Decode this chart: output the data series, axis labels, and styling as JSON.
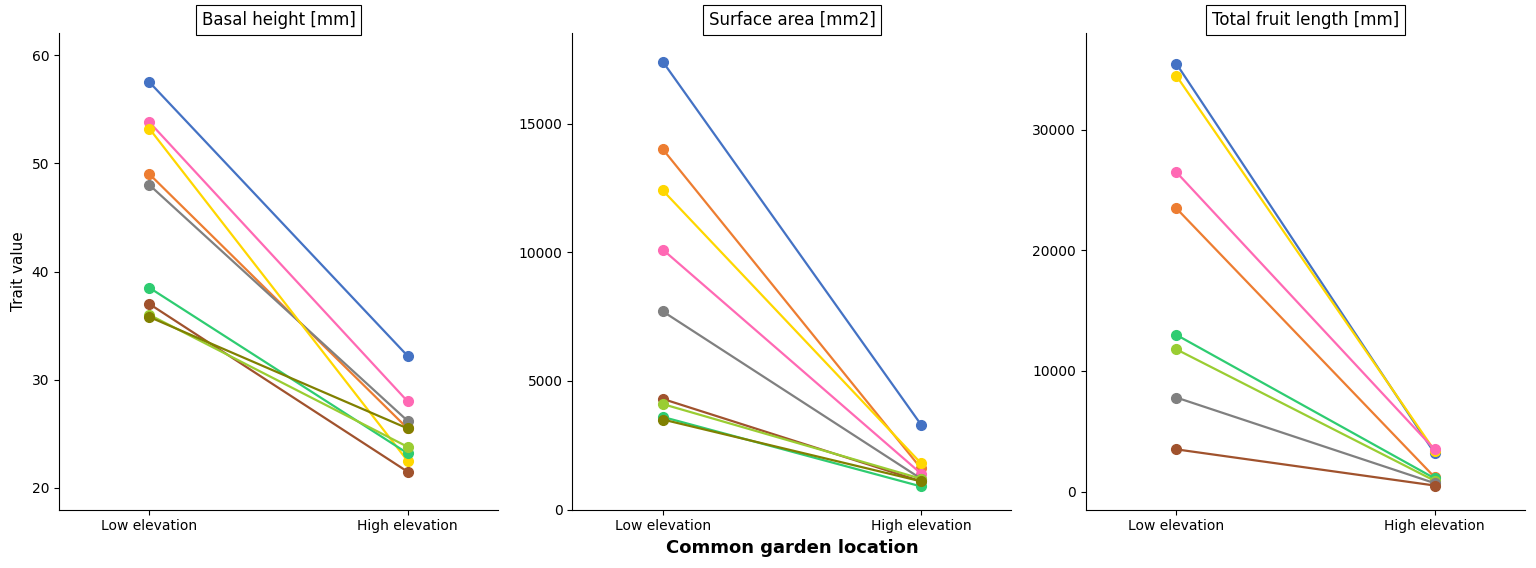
{
  "panels": [
    {
      "title": "Basal height [mm]",
      "ylabel": "Trait value",
      "ylim": [
        18,
        62
      ],
      "yticks": [
        20,
        30,
        40,
        50,
        60
      ],
      "populations": [
        {
          "color": "#4472C4",
          "low": 57.5,
          "high": 32.2
        },
        {
          "color": "#ED7D31",
          "low": 49.0,
          "high": 25.5
        },
        {
          "color": "#808080",
          "low": 48.0,
          "high": 26.2
        },
        {
          "color": "#FF69B4",
          "low": 53.8,
          "high": 28.0
        },
        {
          "color": "#FFD700",
          "low": 53.2,
          "high": 22.5
        },
        {
          "color": "#2ECC71",
          "low": 38.5,
          "high": 23.2
        },
        {
          "color": "#A0522D",
          "low": 37.0,
          "high": 21.5
        },
        {
          "color": "#9ACD32",
          "low": 36.0,
          "high": 23.8
        },
        {
          "color": "#808000",
          "low": 35.8,
          "high": 25.5
        }
      ]
    },
    {
      "title": "Surface area [mm2]",
      "ylabel": "",
      "ylim": [
        0,
        18500
      ],
      "yticks": [
        0,
        5000,
        10000,
        15000
      ],
      "populations": [
        {
          "color": "#4472C4",
          "low": 17400,
          "high": 3300
        },
        {
          "color": "#ED7D31",
          "low": 14000,
          "high": 1600
        },
        {
          "color": "#FFD700",
          "low": 12400,
          "high": 1800
        },
        {
          "color": "#FF69B4",
          "low": 10100,
          "high": 1400
        },
        {
          "color": "#808080",
          "low": 7700,
          "high": 1200
        },
        {
          "color": "#A0522D",
          "low": 4300,
          "high": 1100
        },
        {
          "color": "#9ACD32",
          "low": 4100,
          "high": 1200
        },
        {
          "color": "#2ECC71",
          "low": 3600,
          "high": 900
        },
        {
          "color": "#808000",
          "low": 3500,
          "high": 1100
        }
      ]
    },
    {
      "title": "Total fruit length [mm]",
      "ylabel": "",
      "ylim": [
        -1500,
        38000
      ],
      "yticks": [
        0,
        10000,
        20000,
        30000
      ],
      "populations": [
        {
          "color": "#4472C4",
          "low": 35500,
          "high": 3200
        },
        {
          "color": "#FFD700",
          "low": 34500,
          "high": 3400
        },
        {
          "color": "#FF69B4",
          "low": 26500,
          "high": 3500
        },
        {
          "color": "#ED7D31",
          "low": 23500,
          "high": 1200
        },
        {
          "color": "#2ECC71",
          "low": 13000,
          "high": 1100
        },
        {
          "color": "#9ACD32",
          "low": 11800,
          "high": 900
        },
        {
          "color": "#808080",
          "low": 7800,
          "high": 700
        },
        {
          "color": "#A0522D",
          "low": 3500,
          "high": 500
        }
      ]
    }
  ],
  "xlabel": "Common garden location",
  "xtick_labels": [
    "Low elevation",
    "High elevation"
  ],
  "background_color": "#FFFFFF",
  "marker_size": 7,
  "linewidth": 1.6,
  "title_fontsize": 12,
  "label_fontsize": 11,
  "tick_fontsize": 10,
  "xlabel_fontsize": 13
}
